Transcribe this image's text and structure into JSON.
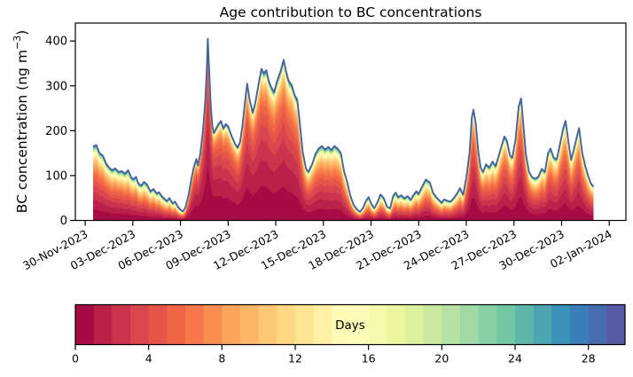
{
  "chart_data": {
    "type": "area",
    "subtype": "stacked-area-age-contribution",
    "title": "Age contribution to BC concentrations",
    "ylabel": {
      "main": "BC concentration (ng m",
      "sup": "−3",
      "close": ")"
    },
    "colorbar_label": "Days",
    "colorbar_ticks": [
      0,
      4,
      8,
      12,
      16,
      20,
      24,
      28
    ],
    "colorbar_range": [
      0,
      30
    ],
    "n_age_bins": 30,
    "y_ticks": [
      0,
      100,
      200,
      300,
      400
    ],
    "ylim": [
      0,
      440
    ],
    "xlim_days": [
      -0.62,
      34.05
    ],
    "x_tick_days": [
      0,
      3,
      6,
      9,
      12,
      15,
      18,
      21,
      24,
      27,
      30,
      33
    ],
    "x_tick_labels": [
      "30-Nov-2023",
      "03-Dec-2023",
      "06-Dec-2023",
      "09-Dec-2023",
      "12-Dec-2023",
      "15-Dec-2023",
      "18-Dec-2023",
      "21-Dec-2023",
      "24-Dec-2023",
      "27-Dec-2023",
      "30-Dec-2023",
      "02-Jan-2024"
    ],
    "colormap_name_hint": "spectral-discrete-30",
    "colormap_anchors": [
      [
        0.0,
        "#9e0142"
      ],
      [
        0.1,
        "#d53e4f"
      ],
      [
        0.2,
        "#f46d43"
      ],
      [
        0.3,
        "#fdae61"
      ],
      [
        0.4,
        "#fee08b"
      ],
      [
        0.5,
        "#ffffbf"
      ],
      [
        0.6,
        "#e6f598"
      ],
      [
        0.7,
        "#abdda4"
      ],
      [
        0.8,
        "#66c2a5"
      ],
      [
        0.9,
        "#3288bd"
      ],
      [
        1.0,
        "#5e4fa2"
      ]
    ],
    "total_line_color": "#44639f",
    "axis_color": "#000000",
    "columns": [
      "day_since_first_tick",
      "total_bc_ng_m3",
      "approx_mean_age_days"
    ],
    "points": [
      [
        0.5,
        165,
        6
      ],
      [
        0.7,
        168,
        6
      ],
      [
        0.9,
        150,
        6
      ],
      [
        1.1,
        145,
        6
      ],
      [
        1.3,
        128,
        6
      ],
      [
        1.5,
        118,
        6
      ],
      [
        1.7,
        112,
        6.5
      ],
      [
        1.9,
        116,
        6.5
      ],
      [
        2.1,
        108,
        6.5
      ],
      [
        2.3,
        110,
        6.5
      ],
      [
        2.5,
        104,
        7
      ],
      [
        2.7,
        112,
        7
      ],
      [
        2.9,
        95,
        7
      ],
      [
        3.05,
        92,
        7
      ],
      [
        3.2,
        97,
        7
      ],
      [
        3.35,
        82,
        7.5
      ],
      [
        3.55,
        78,
        7.5
      ],
      [
        3.7,
        86,
        7.5
      ],
      [
        3.9,
        80,
        8
      ],
      [
        4.1,
        65,
        8
      ],
      [
        4.3,
        70,
        8
      ],
      [
        4.5,
        60,
        8.5
      ],
      [
        4.65,
        63,
        8.5
      ],
      [
        4.8,
        55,
        9
      ],
      [
        5.0,
        48,
        9
      ],
      [
        5.15,
        43,
        9
      ],
      [
        5.3,
        50,
        9
      ],
      [
        5.5,
        38,
        9.5
      ],
      [
        5.65,
        42,
        9.5
      ],
      [
        5.85,
        30,
        10
      ],
      [
        6.0,
        24,
        10
      ],
      [
        6.15,
        20,
        9
      ],
      [
        6.3,
        28,
        7
      ],
      [
        6.5,
        55,
        5
      ],
      [
        6.7,
        95,
        4
      ],
      [
        6.85,
        120,
        3.5
      ],
      [
        7.0,
        137,
        3.2
      ],
      [
        7.1,
        122,
        3.2
      ],
      [
        7.25,
        150,
        3
      ],
      [
        7.4,
        195,
        2.8
      ],
      [
        7.55,
        260,
        2.6
      ],
      [
        7.65,
        330,
        2.5
      ],
      [
        7.72,
        405,
        2.5
      ],
      [
        7.8,
        340,
        2.5
      ],
      [
        7.9,
        260,
        2.6
      ],
      [
        8.0,
        212,
        2.8
      ],
      [
        8.1,
        195,
        3
      ],
      [
        8.25,
        205,
        3
      ],
      [
        8.4,
        215,
        3.2
      ],
      [
        8.55,
        222,
        3.2
      ],
      [
        8.7,
        205,
        3.4
      ],
      [
        8.85,
        215,
        3.4
      ],
      [
        9.0,
        210,
        3.5
      ],
      [
        9.2,
        190,
        3.5
      ],
      [
        9.45,
        170,
        3.6
      ],
      [
        9.6,
        162,
        3.8
      ],
      [
        9.75,
        175,
        3.7
      ],
      [
        9.9,
        210,
        3.5
      ],
      [
        10.05,
        260,
        3.4
      ],
      [
        10.2,
        305,
        3.3
      ],
      [
        10.35,
        270,
        3.4
      ],
      [
        10.55,
        240,
        3.5
      ],
      [
        10.7,
        260,
        3.5
      ],
      [
        10.9,
        300,
        3.5
      ],
      [
        11.1,
        338,
        3.5
      ],
      [
        11.25,
        328,
        3.6
      ],
      [
        11.4,
        335,
        3.6
      ],
      [
        11.55,
        312,
        3.7
      ],
      [
        11.7,
        298,
        3.8
      ],
      [
        11.9,
        286,
        3.9
      ],
      [
        12.1,
        312,
        3.9
      ],
      [
        12.3,
        332,
        3.9
      ],
      [
        12.5,
        358,
        3.8
      ],
      [
        12.65,
        332,
        3.9
      ],
      [
        12.8,
        312,
        4
      ],
      [
        13.0,
        302,
        4
      ],
      [
        13.2,
        278,
        4.1
      ],
      [
        13.35,
        270,
        4.2
      ],
      [
        13.5,
        222,
        4.4
      ],
      [
        13.7,
        152,
        4.7
      ],
      [
        13.9,
        116,
        5
      ],
      [
        14.05,
        108,
        5.2
      ],
      [
        14.3,
        126,
        5.4
      ],
      [
        14.5,
        148,
        5.5
      ],
      [
        14.7,
        160,
        5.5
      ],
      [
        14.9,
        166,
        5.5
      ],
      [
        15.1,
        158,
        5.6
      ],
      [
        15.3,
        164,
        5.6
      ],
      [
        15.5,
        157,
        5.7
      ],
      [
        15.7,
        166,
        5.7
      ],
      [
        15.9,
        160,
        5.8
      ],
      [
        16.1,
        150,
        6
      ],
      [
        16.3,
        110,
        6.3
      ],
      [
        16.5,
        85,
        6.6
      ],
      [
        16.7,
        55,
        7
      ],
      [
        16.9,
        35,
        7.5
      ],
      [
        17.1,
        25,
        8
      ],
      [
        17.3,
        19,
        8.5
      ],
      [
        17.5,
        28,
        9
      ],
      [
        17.7,
        45,
        9
      ],
      [
        17.85,
        52,
        9
      ],
      [
        18.0,
        38,
        9.5
      ],
      [
        18.2,
        27,
        9.5
      ],
      [
        18.4,
        40,
        9.5
      ],
      [
        18.6,
        58,
        9.5
      ],
      [
        18.8,
        50,
        9.5
      ],
      [
        19.0,
        31,
        10
      ],
      [
        19.2,
        27,
        10
      ],
      [
        19.4,
        55,
        9.5
      ],
      [
        19.55,
        62,
        9
      ],
      [
        19.7,
        52,
        9
      ],
      [
        19.9,
        56,
        9
      ],
      [
        20.1,
        49,
        9
      ],
      [
        20.3,
        54,
        9
      ],
      [
        20.5,
        46,
        9
      ],
      [
        20.7,
        58,
        8.5
      ],
      [
        20.85,
        65,
        8.5
      ],
      [
        21.0,
        59,
        8.5
      ],
      [
        21.2,
        74,
        8
      ],
      [
        21.45,
        91,
        7.5
      ],
      [
        21.7,
        85,
        7.5
      ],
      [
        21.9,
        62,
        8
      ],
      [
        22.1,
        52,
        8
      ],
      [
        22.3,
        45,
        8.5
      ],
      [
        22.45,
        39,
        8.5
      ],
      [
        22.6,
        47,
        8.5
      ],
      [
        22.8,
        44,
        8.5
      ],
      [
        23.0,
        42,
        8.5
      ],
      [
        23.2,
        49,
        8
      ],
      [
        23.45,
        62,
        8
      ],
      [
        23.6,
        72,
        7.5
      ],
      [
        23.8,
        57,
        7
      ],
      [
        24.0,
        95,
        5.5
      ],
      [
        24.2,
        150,
        4.5
      ],
      [
        24.35,
        230,
        4
      ],
      [
        24.45,
        247,
        4
      ],
      [
        24.6,
        215,
        4.2
      ],
      [
        24.75,
        155,
        4.5
      ],
      [
        24.9,
        118,
        5
      ],
      [
        25.05,
        108,
        5.5
      ],
      [
        25.25,
        125,
        5.8
      ],
      [
        25.45,
        118,
        6
      ],
      [
        25.65,
        131,
        6
      ],
      [
        25.85,
        121,
        6
      ],
      [
        26.05,
        145,
        5.5
      ],
      [
        26.25,
        170,
        5
      ],
      [
        26.4,
        187,
        4.8
      ],
      [
        26.55,
        178,
        4.8
      ],
      [
        26.75,
        145,
        5
      ],
      [
        26.9,
        140,
        5
      ],
      [
        27.1,
        180,
        4.6
      ],
      [
        27.3,
        255,
        4.3
      ],
      [
        27.45,
        272,
        4.2
      ],
      [
        27.6,
        210,
        4.4
      ],
      [
        27.75,
        148,
        4.8
      ],
      [
        27.95,
        108,
        5.2
      ],
      [
        28.15,
        96,
        5.6
      ],
      [
        28.35,
        93,
        6
      ],
      [
        28.55,
        98,
        6
      ],
      [
        28.75,
        115,
        6
      ],
      [
        28.95,
        108,
        6
      ],
      [
        29.15,
        150,
        5.5
      ],
      [
        29.3,
        160,
        5.3
      ],
      [
        29.5,
        140,
        5.5
      ],
      [
        29.7,
        136,
        5.5
      ],
      [
        29.9,
        170,
        5.2
      ],
      [
        30.1,
        205,
        5
      ],
      [
        30.25,
        222,
        5
      ],
      [
        30.45,
        170,
        5.2
      ],
      [
        30.6,
        135,
        5.5
      ],
      [
        30.75,
        155,
        5.3
      ],
      [
        30.95,
        185,
        5
      ],
      [
        31.1,
        206,
        5
      ],
      [
        31.3,
        150,
        5.3
      ],
      [
        31.5,
        120,
        5.6
      ],
      [
        31.7,
        96,
        6
      ],
      [
        31.85,
        82,
        6
      ],
      [
        32.0,
        76,
        6
      ]
    ]
  }
}
